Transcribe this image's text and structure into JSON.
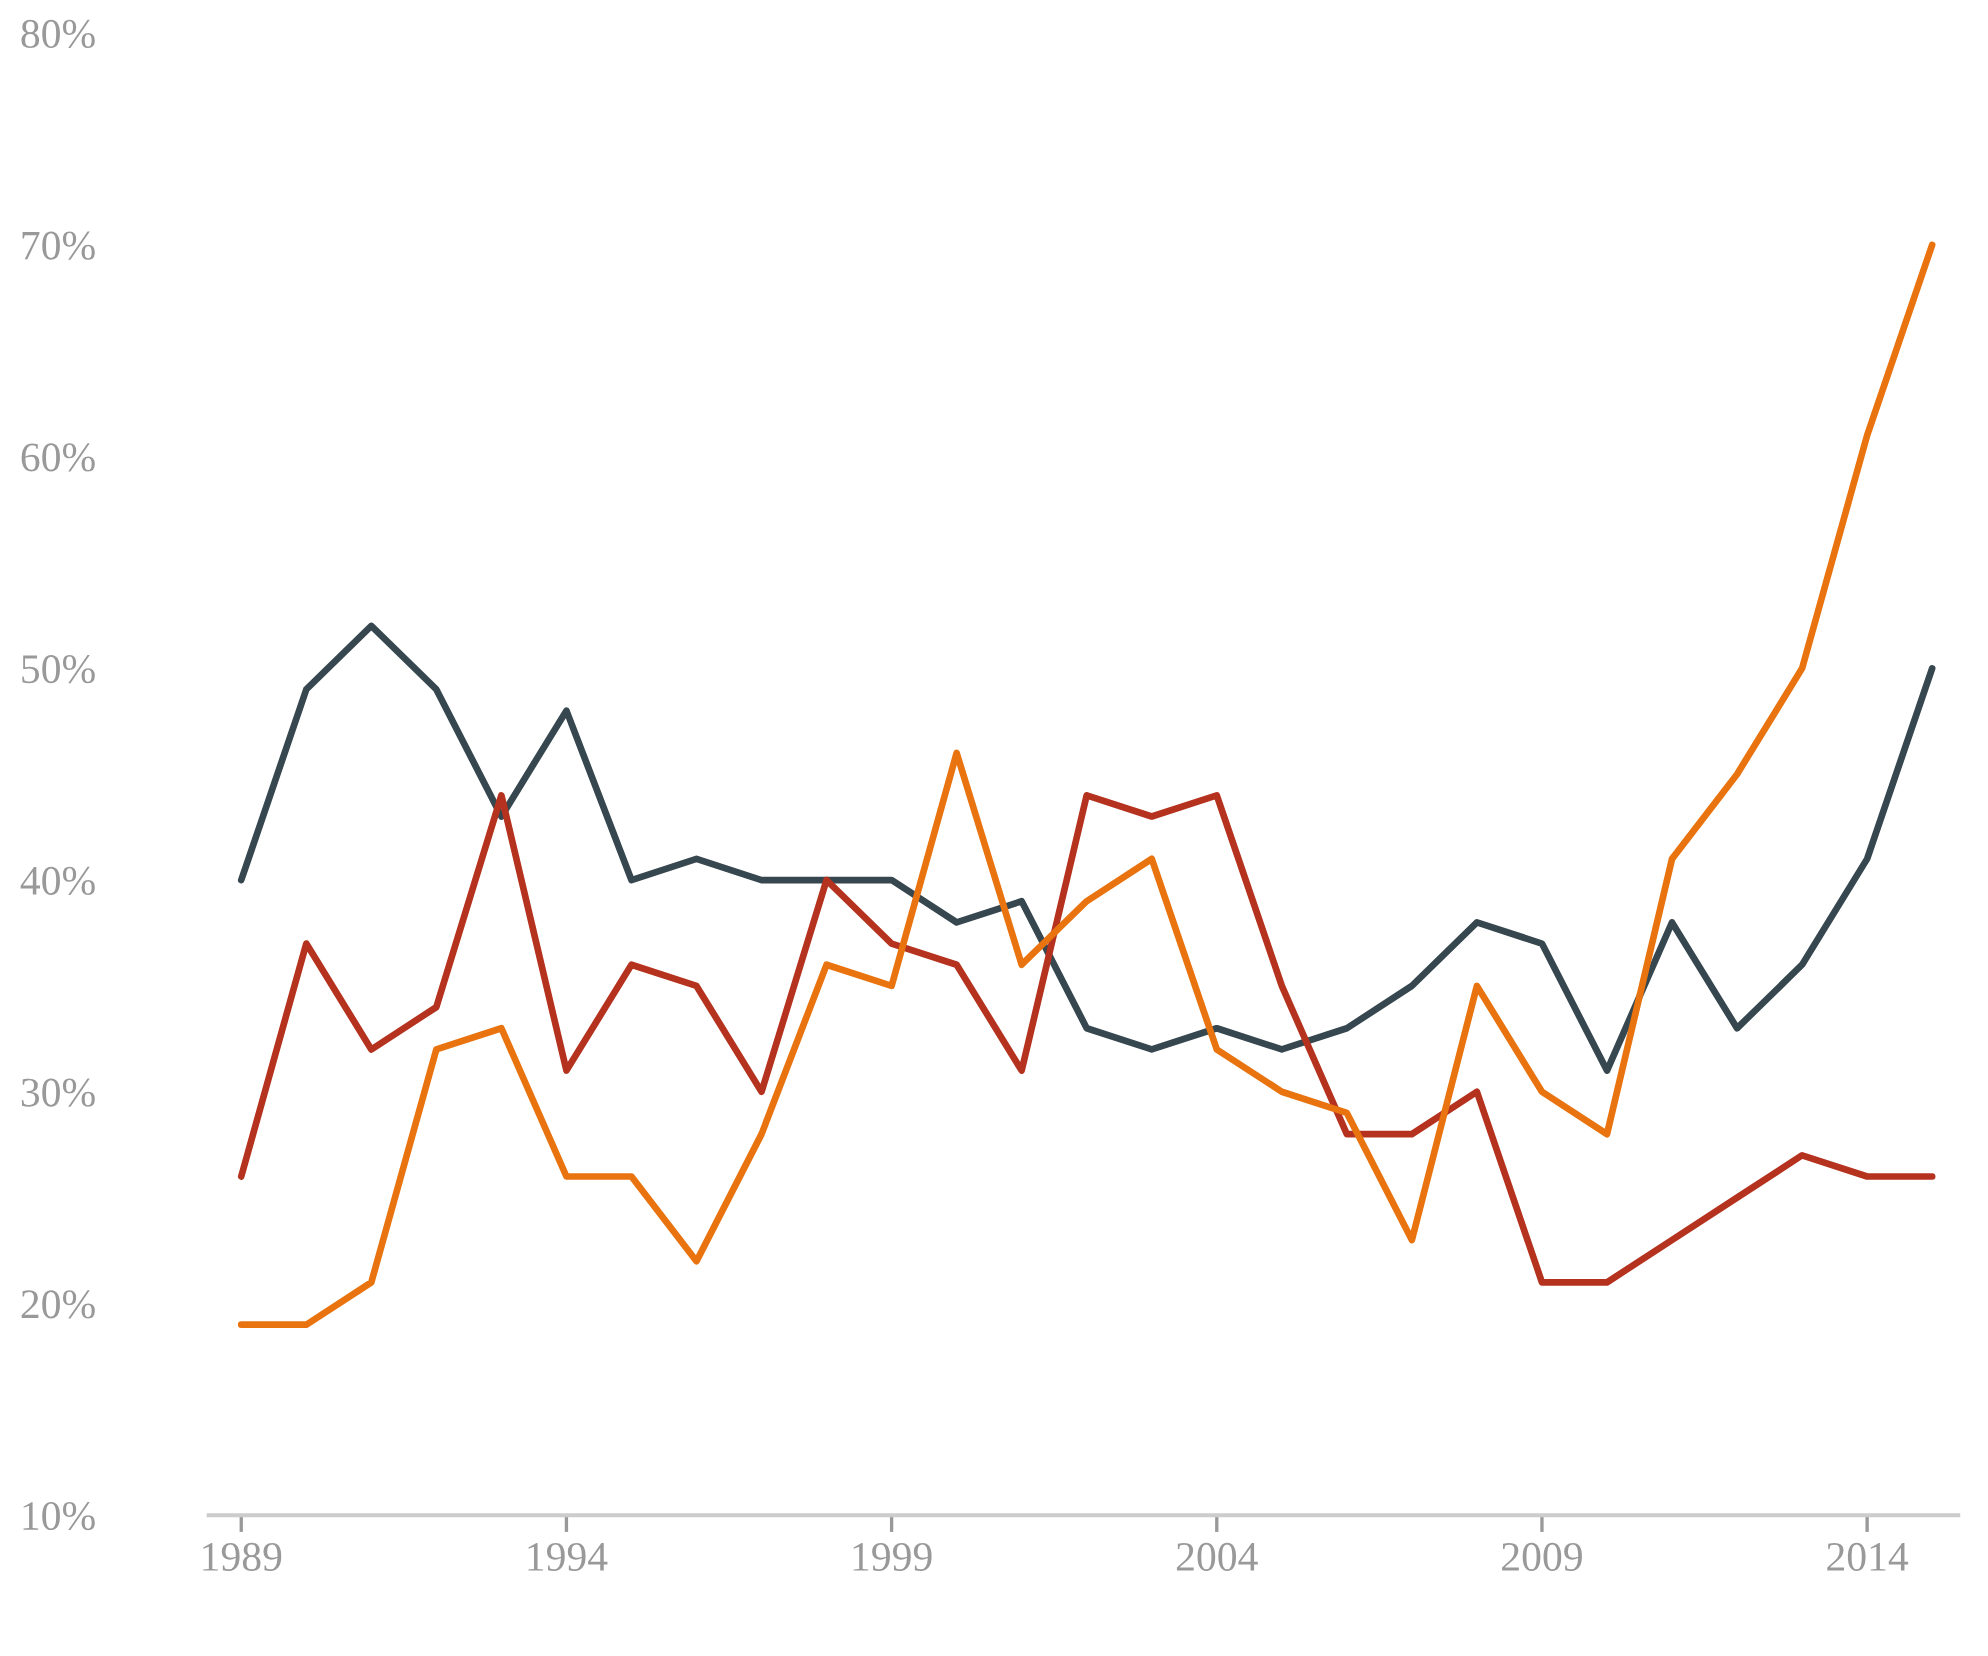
{
  "chart_data": {
    "type": "line",
    "x": [
      1989,
      1990,
      1991,
      1992,
      1993,
      1994,
      1995,
      1996,
      1997,
      1998,
      1999,
      2000,
      2001,
      2002,
      2003,
      2004,
      2005,
      2006,
      2007,
      2008,
      2009,
      2010,
      2011,
      2012,
      2013,
      2014,
      2015
    ],
    "series": [
      {
        "color": "#37474f",
        "values": [
          40,
          49,
          52,
          49,
          43,
          48,
          40,
          41,
          40,
          40,
          40,
          38,
          39,
          33,
          32,
          33,
          32,
          33,
          35,
          38,
          37,
          31,
          38,
          33,
          36,
          41,
          50
        ]
      },
      {
        "color": "#b5321f",
        "values": [
          26,
          37,
          32,
          34,
          44,
          31,
          36,
          35,
          30,
          40,
          37,
          36,
          31,
          44,
          43,
          44,
          35,
          28,
          28,
          30,
          21,
          21,
          23,
          25,
          27,
          26,
          26
        ]
      },
      {
        "color": "#e8730f",
        "values": [
          19,
          19,
          21,
          32,
          33,
          26,
          26,
          22,
          28,
          36,
          35,
          46,
          36,
          39,
          41,
          32,
          30,
          29,
          23,
          35,
          30,
          28,
          41,
          45,
          50,
          61,
          70
        ]
      }
    ],
    "xlim": [
      1988.5,
      2015.4
    ],
    "xticks": [
      1989,
      1994,
      1999,
      2004,
      2009,
      2014
    ],
    "ylim": [
      10,
      80
    ],
    "yticks": [
      {
        "value": 10,
        "label": "10%"
      },
      {
        "value": 20,
        "label": "20%"
      },
      {
        "value": 30,
        "label": "30%"
      },
      {
        "value": 40,
        "label": "40%"
      },
      {
        "value": 50,
        "label": "50%"
      },
      {
        "value": 60,
        "label": "60%"
      },
      {
        "value": 70,
        "label": "70%"
      },
      {
        "value": 80,
        "label": "80%"
      }
    ],
    "grid": false,
    "marker": "none",
    "line_style": "solid",
    "legend": false
  }
}
